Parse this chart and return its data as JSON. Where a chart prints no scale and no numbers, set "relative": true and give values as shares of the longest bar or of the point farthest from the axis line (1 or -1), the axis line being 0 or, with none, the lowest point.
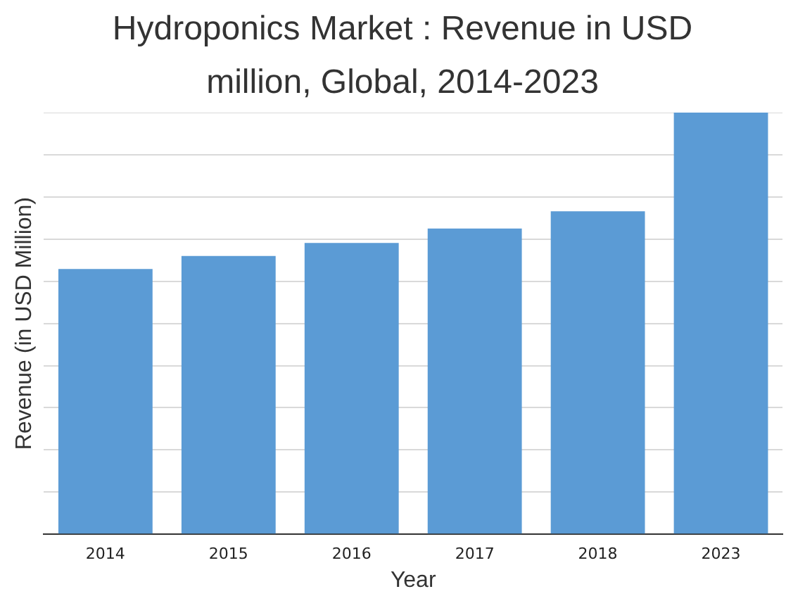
{
  "chart_data": {
    "type": "bar",
    "title": "Hydroponics Market : Revenue in USD million, Global,  2014-2023",
    "xlabel": "Year",
    "ylabel": "Revenue (in USD Million)",
    "categories": [
      "2014",
      "2015",
      "2016",
      "2017",
      "2018",
      "2023"
    ],
    "values": [
      0.629,
      0.66,
      0.691,
      0.725,
      0.766,
      1
    ],
    "color": "#5b9bd5",
    "relative": true,
    "grid": "y",
    "legend": false
  }
}
